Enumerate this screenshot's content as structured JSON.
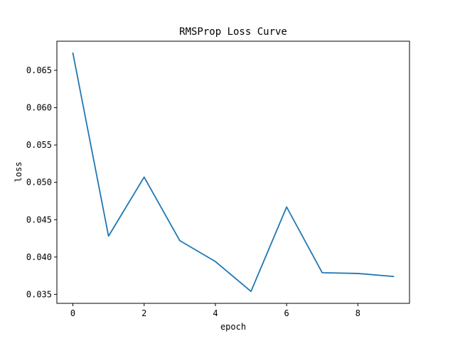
{
  "chart_data": {
    "type": "line",
    "title": "RMSProp Loss Curve",
    "xlabel": "epoch",
    "ylabel": "loss",
    "x": [
      0,
      1,
      2,
      3,
      4,
      5,
      6,
      7,
      8,
      9
    ],
    "series": [
      {
        "values": [
          0.0673,
          0.0428,
          0.0507,
          0.0422,
          0.0394,
          0.0354,
          0.0467,
          0.0379,
          0.0378,
          0.0374
        ],
        "color": "#1f77b4"
      }
    ],
    "xlim": [
      -0.45,
      9.45
    ],
    "ylim": [
      0.0338,
      0.0689
    ],
    "xticks": [
      0,
      2,
      4,
      6,
      8
    ],
    "xtick_labels": [
      "0",
      "2",
      "4",
      "6",
      "8"
    ],
    "yticks": [
      0.035,
      0.04,
      0.045,
      0.05,
      0.055,
      0.06,
      0.065
    ],
    "ytick_labels": [
      "0.035",
      "0.040",
      "0.045",
      "0.050",
      "0.055",
      "0.060",
      "0.065"
    ],
    "grid": false,
    "legend": false
  }
}
